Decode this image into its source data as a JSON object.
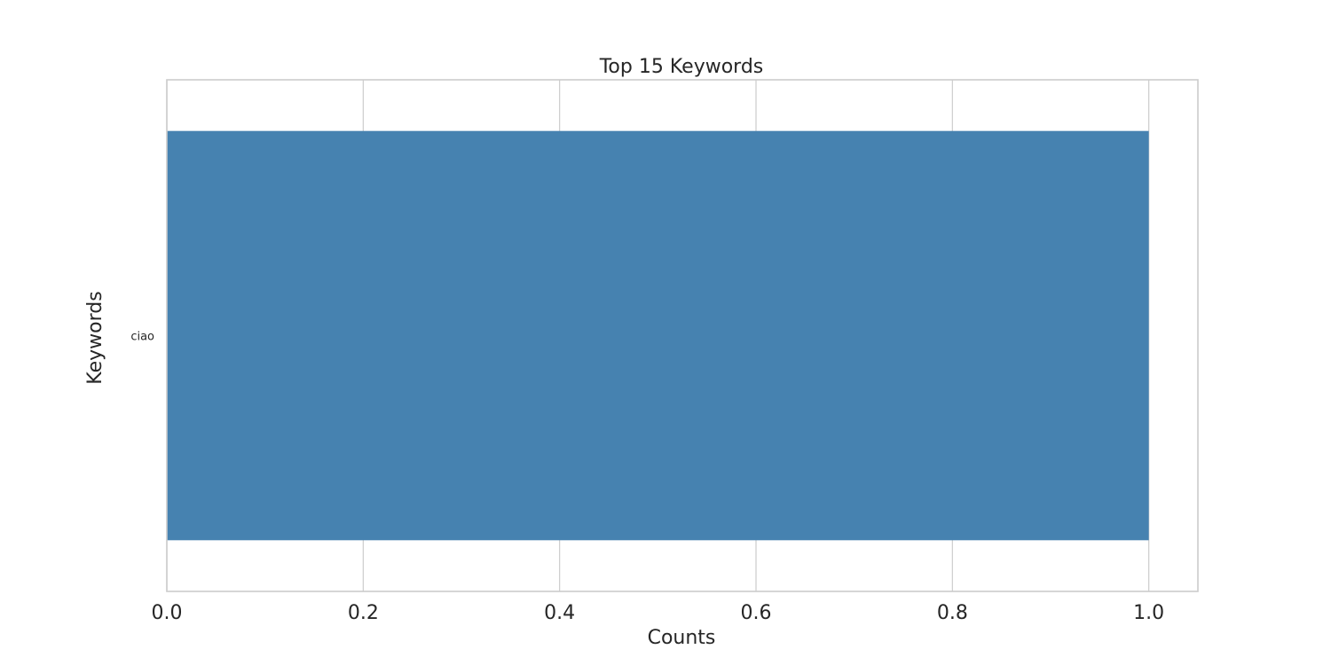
{
  "chart_data": {
    "type": "bar",
    "orientation": "horizontal",
    "title": "Top 15 Keywords",
    "xlabel": "Counts",
    "ylabel": "Keywords",
    "categories": [
      "ciao"
    ],
    "values": [
      1
    ],
    "xlim": [
      0,
      1.05
    ],
    "xticks": [
      0.0,
      0.2,
      0.4,
      0.6,
      0.8,
      1.0
    ],
    "xtick_labels": [
      "0.0",
      "0.2",
      "0.4",
      "0.6",
      "0.8",
      "1.0"
    ],
    "grid": true,
    "bar_color": "#4682b0",
    "grid_color": "#cccccc"
  }
}
